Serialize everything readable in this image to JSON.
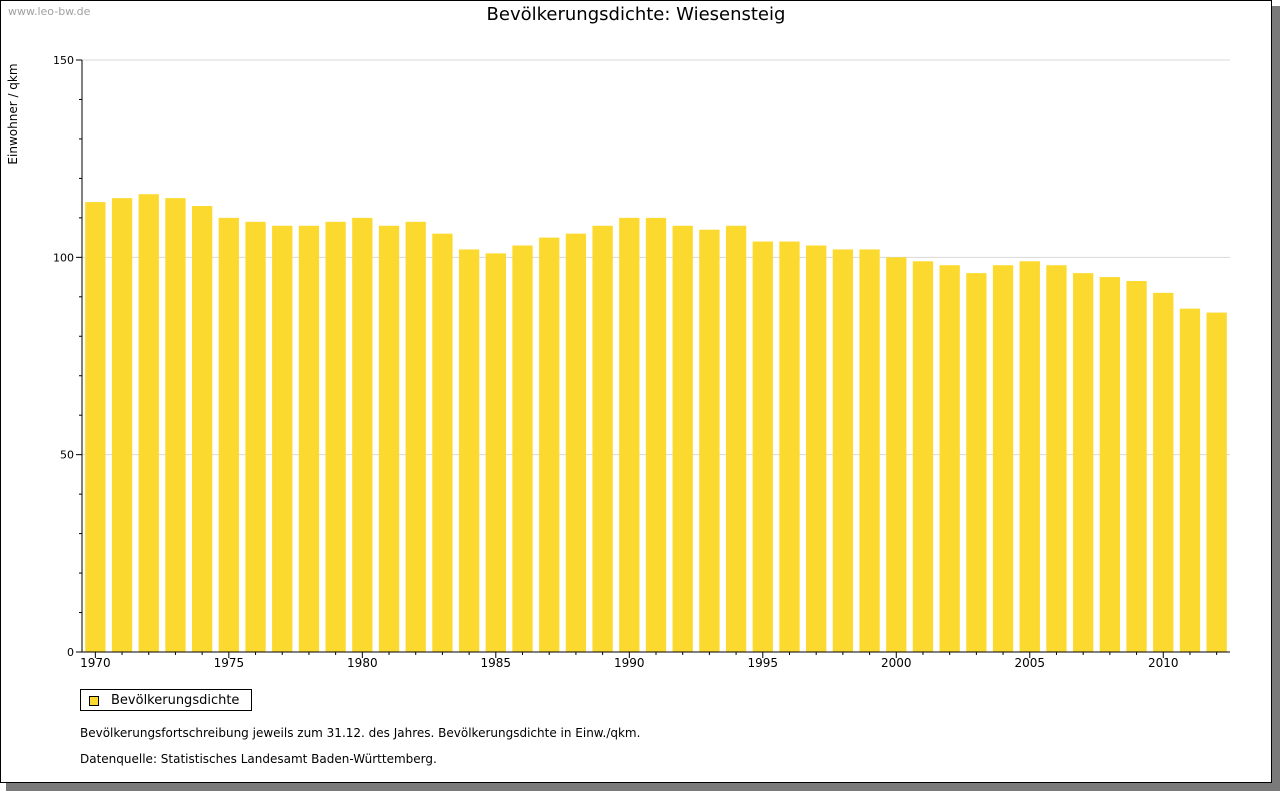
{
  "watermark": "www.leo-bw.de",
  "chart_data": {
    "type": "bar",
    "title": "Bevölkerungsdichte: Wiesensteig",
    "ylabel": "Einwohner / qkm",
    "xlabel": "",
    "ylim": [
      0,
      150
    ],
    "yticks": [
      "0",
      "50",
      "100",
      "150"
    ],
    "grid": true,
    "x_tick_labels": [
      "1970",
      "1975",
      "1980",
      "1985",
      "1990",
      "1995",
      "2000",
      "2005",
      "2010"
    ],
    "categories": [
      1970,
      1971,
      1972,
      1973,
      1974,
      1975,
      1976,
      1977,
      1978,
      1979,
      1980,
      1981,
      1982,
      1983,
      1984,
      1985,
      1986,
      1987,
      1988,
      1989,
      1990,
      1991,
      1992,
      1993,
      1994,
      1995,
      1996,
      1997,
      1998,
      1999,
      2000,
      2001,
      2002,
      2003,
      2004,
      2005,
      2006,
      2007,
      2008,
      2009,
      2010,
      2011,
      2012
    ],
    "series": [
      {
        "name": "Bevölkerungsdichte",
        "color": "#fcd92e",
        "values": [
          114,
          115,
          116,
          115,
          113,
          110,
          109,
          108,
          108,
          109,
          110,
          108,
          109,
          106,
          102,
          101,
          103,
          105,
          106,
          108,
          110,
          110,
          108,
          107,
          108,
          104,
          104,
          103,
          102,
          102,
          100,
          99,
          98,
          96,
          98,
          99,
          98,
          96,
          95,
          94,
          91,
          87,
          86
        ]
      }
    ],
    "legend_position": "bottom-left"
  },
  "footnotes": [
    "Bevölkerungsfortschreibung jeweils zum 31.12. des Jahres. Bevölkerungsdichte in Einw./qkm.",
    "Datenquelle: Statistisches Landesamt Baden-Württemberg."
  ]
}
